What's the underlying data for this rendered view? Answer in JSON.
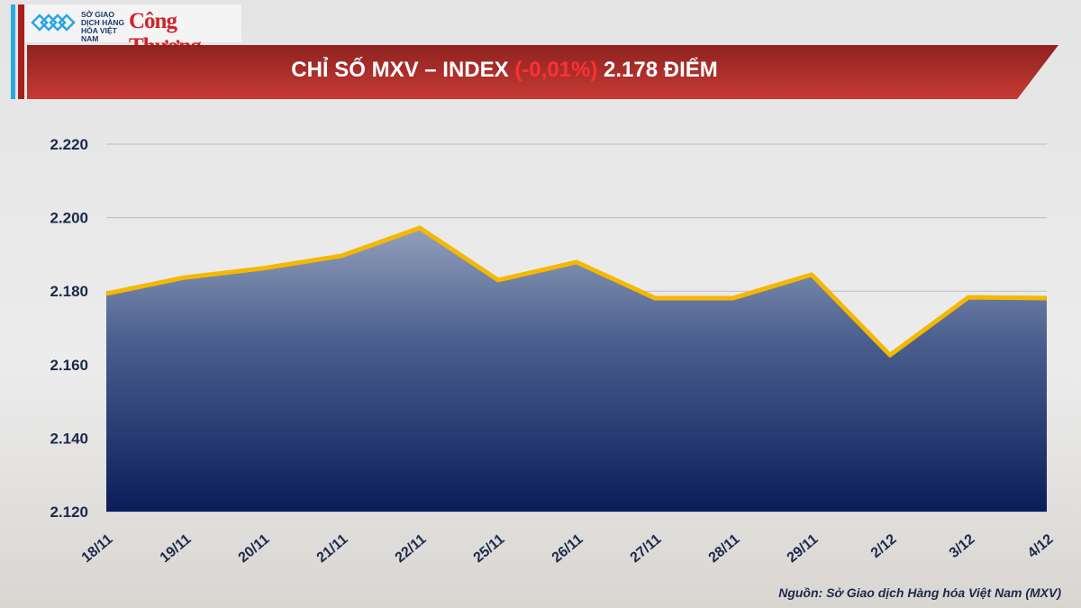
{
  "logos": {
    "mxv": "SỞ GIAO DỊCH HÀNG HÓA VIỆT NAM",
    "congthuong": "Công Thương"
  },
  "header": {
    "title_prefix": "CHỈ SỐ MXV – INDEX",
    "change": "(-0,01%)",
    "title_suffix": "2.178 ĐIỂM"
  },
  "source": "Nguồn: Sở Giao dịch Hàng hóa Việt Nam (MXV)",
  "colors": {
    "line": "#f5b800",
    "area_top": "#8f9bb8",
    "area_bottom": "#0d1f5c",
    "title_bg": "#b02c28",
    "change": "#ff3030"
  },
  "chart_data": {
    "type": "area",
    "title": "CHỈ SỐ MXV – INDEX (-0,01%) 2.178 ĐIỂM",
    "categories": [
      "18/11",
      "19/11",
      "20/11",
      "21/11",
      "22/11",
      "25/11",
      "26/11",
      "27/11",
      "28/11",
      "29/11",
      "2/12",
      "3/12",
      "4/12"
    ],
    "values": [
      2179.3,
      2183.7,
      2186.2,
      2189.6,
      2197.2,
      2183,
      2187.9,
      2178.1,
      2178.1,
      2184.5,
      2162.6,
      2178.3,
      2178.1
    ],
    "ylim": [
      2120,
      2220
    ],
    "yticks": [
      2120,
      2140,
      2160,
      2180,
      2200,
      2220
    ],
    "ytick_labels": [
      "2.120",
      "2.140",
      "2.160",
      "2.180",
      "2.200",
      "2.220"
    ],
    "grid": true
  }
}
